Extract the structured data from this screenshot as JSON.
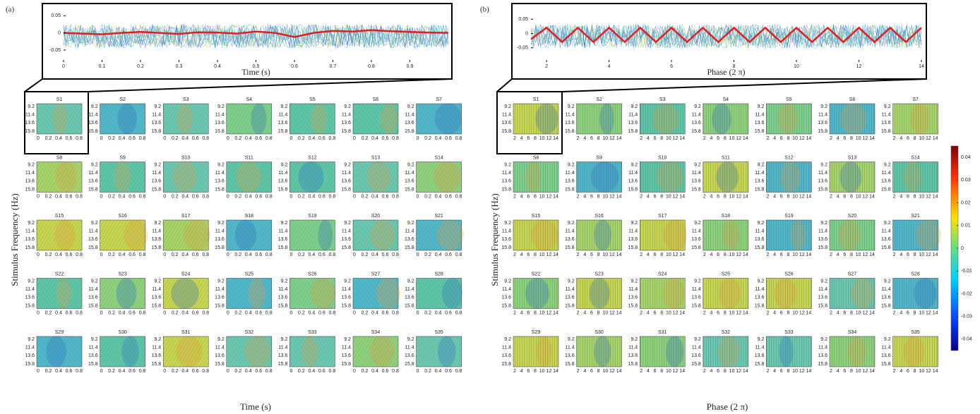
{
  "panels": [
    {
      "label": "(a)",
      "top_plot": {
        "xlabel": "Time (s)",
        "xlim": [
          0,
          1
        ],
        "xticks": [
          0,
          0.1,
          0.2,
          0.3,
          0.4,
          0.5,
          0.6,
          0.7,
          0.8,
          0.9
        ],
        "ylim": [
          -0.085,
          0.065
        ],
        "yticks": [
          0.05,
          0,
          -0.05
        ],
        "color": "#e02020",
        "x": [
          0,
          0.05,
          0.1,
          0.15,
          0.2,
          0.25,
          0.3,
          0.35,
          0.4,
          0.45,
          0.5,
          0.55,
          0.6,
          0.65,
          0.7,
          0.75,
          0.8,
          0.85,
          0.9,
          0.95,
          1
        ],
        "values": [
          0,
          -0.002,
          -0.004,
          0,
          0.003,
          0,
          -0.003,
          0.002,
          0.001,
          -0.002,
          0.004,
          0,
          -0.012,
          0,
          0.006,
          0.004,
          0.008,
          0.005,
          0.003,
          0.001,
          0
        ]
      },
      "grid": {
        "ylabel": "Stimulus Frequency (Hz)",
        "xlabel": "Time (s)",
        "yticks": [
          9.2,
          11.4,
          13.6,
          15.8
        ],
        "xticks": [
          0,
          0.2,
          0.4,
          0.6,
          0.8
        ],
        "subjects": [
          "S1",
          "S2",
          "S3",
          "S4",
          "S5",
          "S6",
          "S7",
          "S8",
          "S9",
          "S10",
          "S11",
          "S12",
          "S13",
          "S14",
          "S15",
          "S16",
          "S17",
          "S18",
          "S19",
          "S20",
          "S21",
          "S22",
          "S23",
          "S24",
          "S25",
          "S26",
          "S27",
          "S28",
          "S29",
          "S30",
          "S31",
          "S32",
          "S33",
          "S34",
          "S35"
        ]
      }
    },
    {
      "label": "(b)",
      "top_plot": {
        "xlabel": "Phase (2 π)",
        "xlim": [
          1.5,
          14
        ],
        "xticks": [
          2,
          4,
          6,
          8,
          10,
          12,
          14
        ],
        "ylim": [
          -0.1,
          0.08
        ],
        "yticks": [
          0.05,
          0,
          -0.05
        ],
        "color": "#e02020",
        "x": [
          1.5,
          2,
          2.5,
          3,
          3.5,
          4,
          4.5,
          5,
          5.5,
          6,
          6.5,
          7,
          7.5,
          8,
          8.5,
          9,
          9.5,
          10,
          10.5,
          11,
          11.5,
          12,
          12.5,
          13,
          13.5,
          14
        ],
        "values": [
          -0.02,
          0.02,
          -0.03,
          0.02,
          -0.03,
          0.02,
          -0.03,
          0.02,
          -0.03,
          0.02,
          -0.03,
          0.02,
          -0.03,
          0.02,
          -0.03,
          0.02,
          -0.03,
          0.02,
          -0.03,
          0.02,
          -0.03,
          0.02,
          -0.03,
          0.02,
          -0.03,
          0.02
        ]
      },
      "grid": {
        "ylabel": "Stimulus Frequency (Hz)",
        "xlabel": "Phase (2 π)",
        "yticks": [
          9.2,
          11.4,
          13.6,
          15.8
        ],
        "xticks": [
          2,
          4,
          6,
          8,
          10,
          12,
          14
        ],
        "subjects": [
          "S1",
          "S2",
          "S3",
          "S4",
          "S5",
          "S6",
          "S7",
          "S8",
          "S9",
          "S10",
          "S11",
          "S12",
          "S13",
          "S14",
          "S15",
          "S16",
          "S17",
          "S18",
          "S19",
          "S20",
          "S21",
          "S22",
          "S23",
          "S24",
          "S25",
          "S26",
          "S27",
          "S28",
          "S29",
          "S30",
          "S31",
          "S32",
          "S33",
          "S34",
          "S35"
        ]
      }
    }
  ],
  "colorbar": {
    "lim": [
      -0.045,
      0.045
    ],
    "ticks": [
      0.04,
      0.03,
      0.02,
      0.01,
      0,
      -0.01,
      -0.02,
      -0.03,
      -0.04
    ]
  }
}
